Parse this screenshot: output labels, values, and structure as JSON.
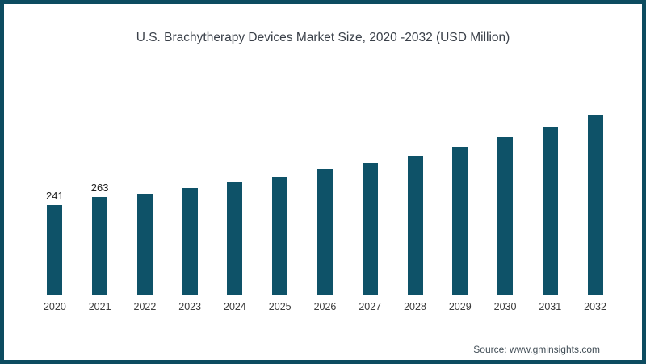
{
  "header": {
    "title": "U.S. Brachytherapy Devices Market Size, 2020 -2032 (USD Million)"
  },
  "source": {
    "label": "Source: www.gminsights.com"
  },
  "colors": {
    "bar": "#0e5268",
    "frame_border": "#0d4c60",
    "axis_line": "#cfcfcf",
    "title_text": "#3a4049",
    "tick_text": "#3b3b3b"
  },
  "chart_data": {
    "type": "bar",
    "title": "U.S. Brachytherapy Devices Market Size, 2020 -2032 (USD Million)",
    "xlabel": "",
    "ylabel": "",
    "categories": [
      "2020",
      "2021",
      "2022",
      "2023",
      "2024",
      "2025",
      "2026",
      "2027",
      "2028",
      "2029",
      "2030",
      "2031",
      "2032"
    ],
    "values": [
      241,
      263,
      271,
      286,
      302,
      318,
      336,
      355,
      375,
      399,
      424,
      452,
      483
    ],
    "data_labels": [
      "241",
      "263",
      "",
      "",
      "",
      "",
      "",
      "",
      "",
      "",
      "",
      "",
      ""
    ],
    "labeled_points_note": "only 2020 and 2021 carry visible value labels",
    "ylim": [
      0,
      520
    ],
    "gridlines": false,
    "legend_position": "none",
    "bar_color": "#0e5268"
  }
}
